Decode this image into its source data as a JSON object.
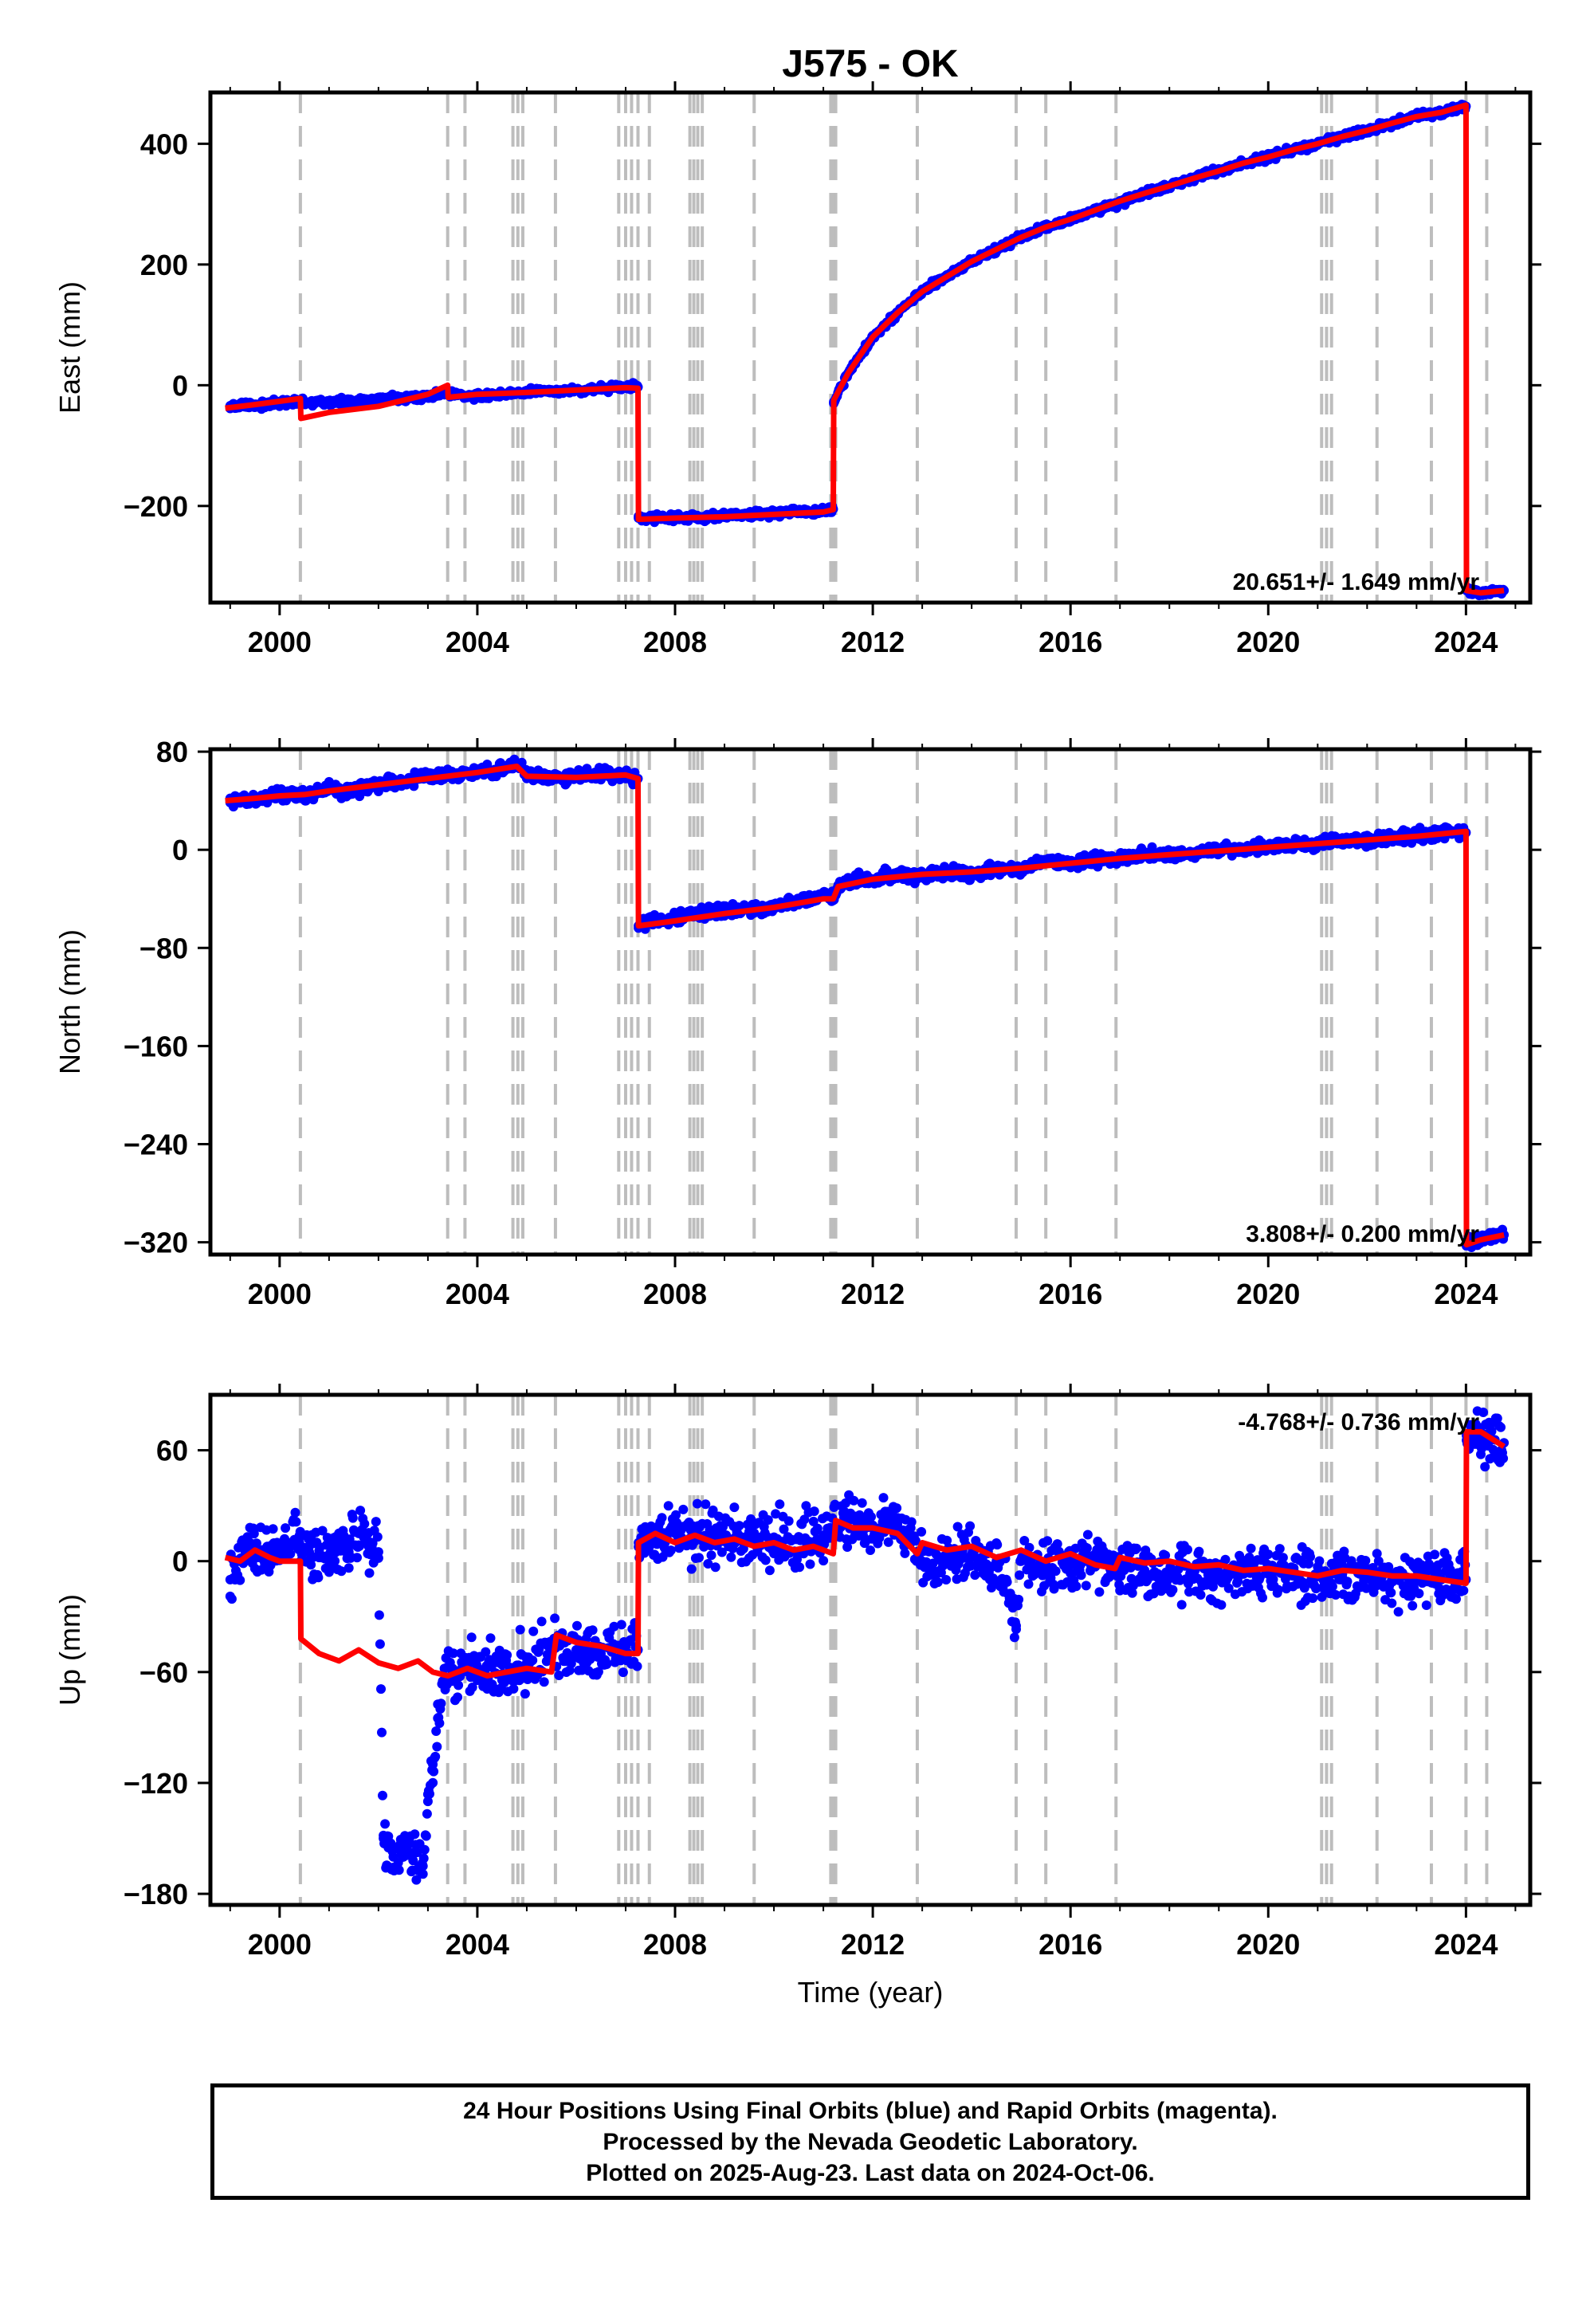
{
  "title": "J575 - OK",
  "xlabel": "Time (year)",
  "footer": {
    "line1": "24 Hour Positions Using Final Orbits (blue) and Rapid Orbits (magenta).",
    "line2": "Processed by the Nevada Geodetic Laboratory.",
    "line3": "Plotted on 2025-Aug-23. Last data on 2024-Oct-06."
  },
  "colors": {
    "final_orbits": "#0000ff",
    "model": "#ff0000",
    "event_lines": "#bdbdbd",
    "axes": "#000000"
  },
  "chart_data": [
    {
      "type": "scatter",
      "panel": "east",
      "ylabel": "East (mm)",
      "xlim": [
        1998.6,
        2025.3
      ],
      "ylim": [
        -360,
        485
      ],
      "xticks": [
        2000,
        2004,
        2008,
        2012,
        2016,
        2020,
        2024
      ],
      "yticks": [
        -200,
        0,
        200,
        400
      ],
      "rate_label": "20.651+/- 1.649 mm/yr",
      "grid": false,
      "event_lines": [
        2000.42,
        2003.4,
        2003.75,
        2004.72,
        2004.82,
        2004.92,
        2005.58,
        2006.86,
        2007.0,
        2007.12,
        2007.25,
        2007.48,
        2008.3,
        2008.38,
        2008.46,
        2008.55,
        2009.6,
        2011.15,
        2011.2,
        2011.25,
        2012.9,
        2014.9,
        2015.5,
        2016.92,
        2021.08,
        2021.18,
        2021.28,
        2022.2,
        2023.3,
        2024.0,
        2024.42
      ],
      "series": [
        {
          "name": "Final Orbits",
          "style": "points",
          "x": [
            1999.0,
            1999.5,
            2000.0,
            2000.4,
            2000.9,
            2001.5,
            2002.0,
            2002.5,
            2003.0,
            2003.4,
            2004.0,
            2004.5,
            2005.0,
            2005.5,
            2006.0,
            2006.5,
            2007.0,
            2007.25,
            2007.26,
            2007.5,
            2008.0,
            2008.5,
            2009.0,
            2009.5,
            2010.0,
            2010.5,
            2011.0,
            2011.2,
            2011.21,
            2011.5,
            2012.0,
            2012.5,
            2013.0,
            2013.5,
            2014.0,
            2014.5,
            2015.0,
            2015.5,
            2016.0,
            2016.5,
            2017.0,
            2017.5,
            2018.0,
            2018.5,
            2019.0,
            2019.5,
            2020.0,
            2020.5,
            2021.0,
            2021.5,
            2022.0,
            2022.5,
            2023.0,
            2023.5,
            2024.0,
            2024.01,
            2024.3,
            2024.77
          ],
          "y": [
            -34,
            -33,
            -30,
            -28,
            -28,
            -27,
            -24,
            -20,
            -18,
            -14,
            -18,
            -14,
            -12,
            -10,
            -8,
            -6,
            -3,
            -3,
            -220,
            -220,
            -218,
            -220,
            -216,
            -214,
            -212,
            -210,
            -208,
            -205,
            -30,
            20,
            80,
            120,
            155,
            180,
            205,
            225,
            245,
            262,
            275,
            290,
            302,
            318,
            330,
            343,
            355,
            368,
            378,
            390,
            400,
            412,
            422,
            434,
            445,
            452,
            462,
            -340,
            -344,
            -340
          ]
        },
        {
          "name": "Model",
          "style": "line",
          "x": [
            1998.9,
            1999.5,
            2000.42,
            2000.43,
            2001.0,
            2002.0,
            2003.0,
            2003.4,
            2003.41,
            2004.0,
            2005.0,
            2006.0,
            2007.0,
            2007.25,
            2007.26,
            2008.0,
            2009.0,
            2010.0,
            2011.0,
            2011.2,
            2011.21,
            2011.5,
            2012.0,
            2012.5,
            2013.0,
            2013.5,
            2014.0,
            2014.5,
            2015.0,
            2015.5,
            2016.0,
            2016.5,
            2017.0,
            2017.5,
            2018.0,
            2018.5,
            2019.0,
            2019.5,
            2020.0,
            2020.5,
            2021.0,
            2021.5,
            2022.0,
            2022.5,
            2023.0,
            2023.5,
            2024.0,
            2024.01,
            2024.3,
            2024.77
          ],
          "y": [
            -38,
            -32,
            -22,
            -55,
            -45,
            -35,
            -15,
            0,
            -20,
            -15,
            -12,
            -8,
            -4,
            -5,
            -222,
            -220,
            -218,
            -214,
            -210,
            -206,
            -25,
            20,
            80,
            120,
            155,
            180,
            205,
            225,
            245,
            262,
            275,
            290,
            305,
            318,
            330,
            343,
            355,
            368,
            378,
            390,
            400,
            412,
            422,
            434,
            445,
            452,
            464,
            -340,
            -344,
            -340
          ]
        }
      ]
    },
    {
      "type": "scatter",
      "panel": "north",
      "ylabel": "North (mm)",
      "xlim": [
        1998.6,
        2025.3
      ],
      "ylim": [
        -330,
        82
      ],
      "xticks": [
        2000,
        2004,
        2008,
        2012,
        2016,
        2020,
        2024
      ],
      "yticks": [
        -320,
        -240,
        -160,
        -80,
        0,
        80
      ],
      "rate_label": "3.808+/- 0.200 mm/yr",
      "grid": false,
      "event_lines": [
        2000.42,
        2003.4,
        2003.75,
        2004.72,
        2004.82,
        2004.92,
        2005.58,
        2006.86,
        2007.0,
        2007.12,
        2007.25,
        2007.48,
        2008.3,
        2008.38,
        2008.46,
        2008.55,
        2009.6,
        2011.15,
        2011.2,
        2011.25,
        2012.9,
        2014.9,
        2015.5,
        2016.92,
        2021.08,
        2021.18,
        2021.28,
        2022.2,
        2023.3,
        2024.0,
        2024.42
      ],
      "series": [
        {
          "name": "Final Orbits",
          "style": "points",
          "x": [
            1999.0,
            1999.5,
            2000.0,
            2000.5,
            2001.0,
            2001.5,
            2002.0,
            2002.5,
            2003.0,
            2003.5,
            2004.0,
            2004.5,
            2004.8,
            2005.0,
            2005.5,
            2006.0,
            2006.5,
            2007.0,
            2007.25,
            2007.26,
            2007.5,
            2008.0,
            2008.5,
            2009.0,
            2009.5,
            2010.0,
            2010.5,
            2011.0,
            2011.2,
            2011.3,
            2011.5,
            2012.0,
            2012.5,
            2013.0,
            2013.5,
            2014.0,
            2014.5,
            2015.0,
            2015.5,
            2016.0,
            2016.5,
            2017.0,
            2017.5,
            2018.0,
            2018.5,
            2019.0,
            2019.5,
            2020.0,
            2020.5,
            2021.0,
            2021.5,
            2022.0,
            2022.5,
            2023.0,
            2023.5,
            2024.0,
            2024.01,
            2024.3,
            2024.77
          ],
          "y": [
            42,
            40,
            46,
            44,
            50,
            48,
            54,
            56,
            60,
            60,
            64,
            66,
            70,
            62,
            58,
            60,
            62,
            60,
            58,
            -62,
            -56,
            -56,
            -52,
            -50,
            -48,
            -46,
            -42,
            -38,
            -40,
            -30,
            -26,
            -24,
            -20,
            -22,
            -18,
            -20,
            -16,
            -15,
            -10,
            -12,
            -8,
            -8,
            -4,
            -5,
            -2,
            0,
            0,
            3,
            3,
            5,
            7,
            8,
            10,
            12,
            14,
            14,
            -320,
            -318,
            -314
          ]
        },
        {
          "name": "Model",
          "style": "line",
          "x": [
            1998.9,
            1999.5,
            2000.0,
            2000.5,
            2001.0,
            2002.0,
            2003.0,
            2004.0,
            2004.8,
            2005.0,
            2006.0,
            2007.0,
            2007.25,
            2007.26,
            2008.0,
            2009.0,
            2010.0,
            2011.0,
            2011.2,
            2011.3,
            2012.0,
            2013.0,
            2014.0,
            2015.0,
            2016.0,
            2017.0,
            2018.0,
            2019.0,
            2020.0,
            2021.0,
            2022.0,
            2023.0,
            2024.0,
            2024.01,
            2024.3,
            2024.77
          ],
          "y": [
            40,
            42,
            44,
            45,
            48,
            53,
            58,
            63,
            68,
            60,
            59,
            61,
            58,
            -62,
            -58,
            -52,
            -47,
            -40,
            -40,
            -30,
            -24,
            -20,
            -18,
            -15,
            -11,
            -7,
            -4,
            -1,
            2,
            5,
            8,
            11,
            15,
            -322,
            -318,
            -314
          ]
        }
      ]
    },
    {
      "type": "scatter",
      "panel": "up",
      "ylabel": "Up (mm)",
      "xlim": [
        1998.6,
        2025.3
      ],
      "ylim": [
        -186,
        90
      ],
      "xticks": [
        2000,
        2004,
        2008,
        2012,
        2016,
        2020,
        2024
      ],
      "yticks": [
        -180,
        -120,
        -60,
        0,
        60
      ],
      "rate_label": "-4.768+/- 0.736 mm/yr",
      "grid": false,
      "event_lines": [
        2000.42,
        2003.4,
        2003.75,
        2004.72,
        2004.82,
        2004.92,
        2005.58,
        2006.86,
        2007.0,
        2007.12,
        2007.25,
        2007.48,
        2008.3,
        2008.38,
        2008.46,
        2008.55,
        2009.6,
        2011.15,
        2011.2,
        2011.25,
        2012.9,
        2014.9,
        2015.5,
        2016.92,
        2021.08,
        2021.18,
        2021.28,
        2022.2,
        2023.3,
        2024.0,
        2024.42
      ],
      "series": [
        {
          "name": "Final Orbits",
          "style": "points",
          "x": [
            1999.0,
            1999.2,
            1999.4,
            1999.6,
            1999.8,
            2000.0,
            2000.2,
            2000.4,
            2000.6,
            2000.8,
            2001.0,
            2001.2,
            2001.4,
            2001.6,
            2001.8,
            2002.0,
            2002.1,
            2002.2,
            2002.3,
            2002.5,
            2002.7,
            2002.9,
            2003.0,
            2003.1,
            2003.2,
            2003.3,
            2003.5,
            2004.0,
            2004.5,
            2005.0,
            2005.5,
            2006.0,
            2006.5,
            2007.0,
            2007.25,
            2007.26,
            2007.5,
            2008.0,
            2008.5,
            2009.0,
            2009.5,
            2010.0,
            2010.5,
            2011.0,
            2011.2,
            2011.3,
            2011.5,
            2012.0,
            2012.5,
            2013.0,
            2013.5,
            2014.0,
            2014.5,
            2014.9,
            2015.0,
            2015.5,
            2016.0,
            2016.5,
            2017.0,
            2017.5,
            2018.0,
            2018.5,
            2019.0,
            2019.5,
            2020.0,
            2020.5,
            2021.0,
            2021.5,
            2022.0,
            2022.5,
            2023.0,
            2023.5,
            2024.0,
            2024.01,
            2024.3,
            2024.77
          ],
          "y": [
            -10,
            0,
            10,
            5,
            0,
            5,
            8,
            10,
            5,
            2,
            0,
            10,
            5,
            15,
            8,
            5,
            -150,
            -155,
            -160,
            -160,
            -162,
            -165,
            -130,
            -110,
            -85,
            -65,
            -60,
            -58,
            -56,
            -55,
            -45,
            -48,
            -50,
            -50,
            -48,
            10,
            12,
            15,
            12,
            14,
            16,
            13,
            12,
            14,
            14,
            20,
            22,
            18,
            20,
            0,
            0,
            2,
            0,
            -35,
            0,
            -2,
            0,
            -3,
            -4,
            -5,
            -5,
            -6,
            -6,
            -7,
            -7,
            -8,
            -8,
            -9,
            -9,
            -10,
            -10,
            -10,
            -10,
            68,
            70,
            64
          ]
        },
        {
          "name": "Model",
          "style": "line",
          "x": [
            1998.9,
            1999.2,
            1999.5,
            1999.8,
            2000.0,
            2000.42,
            2000.43,
            2000.8,
            2001.2,
            2001.6,
            2002.0,
            2002.4,
            2002.8,
            2003.1,
            2003.4,
            2003.41,
            2003.8,
            2004.2,
            2004.6,
            2005.0,
            2005.5,
            2005.6,
            2006.0,
            2006.5,
            2007.0,
            2007.25,
            2007.26,
            2007.6,
            2008.0,
            2008.4,
            2008.8,
            2009.2,
            2009.6,
            2010.0,
            2010.4,
            2010.8,
            2011.2,
            2011.25,
            2011.6,
            2012.0,
            2012.5,
            2012.9,
            2013.0,
            2013.5,
            2014.0,
            2014.5,
            2015.0,
            2015.5,
            2016.0,
            2016.5,
            2016.9,
            2017.0,
            2017.5,
            2018.0,
            2018.5,
            2019.0,
            2019.5,
            2020.0,
            2020.5,
            2021.0,
            2021.5,
            2022.0,
            2022.5,
            2023.0,
            2023.5,
            2024.0,
            2024.01,
            2024.3,
            2024.77
          ],
          "y": [
            2,
            0,
            6,
            2,
            0,
            0,
            -42,
            -50,
            -54,
            -48,
            -55,
            -58,
            -54,
            -60,
            -62,
            -62,
            -58,
            -62,
            -60,
            -58,
            -60,
            -40,
            -44,
            -46,
            -50,
            -50,
            10,
            15,
            10,
            14,
            10,
            12,
            8,
            10,
            6,
            8,
            4,
            22,
            18,
            18,
            15,
            4,
            10,
            6,
            8,
            2,
            6,
            0,
            4,
            -2,
            -4,
            2,
            -1,
            0,
            -3,
            -2,
            -5,
            -4,
            -6,
            -8,
            -5,
            -6,
            -8,
            -8,
            -10,
            -12,
            70,
            70,
            62
          ]
        }
      ]
    }
  ]
}
